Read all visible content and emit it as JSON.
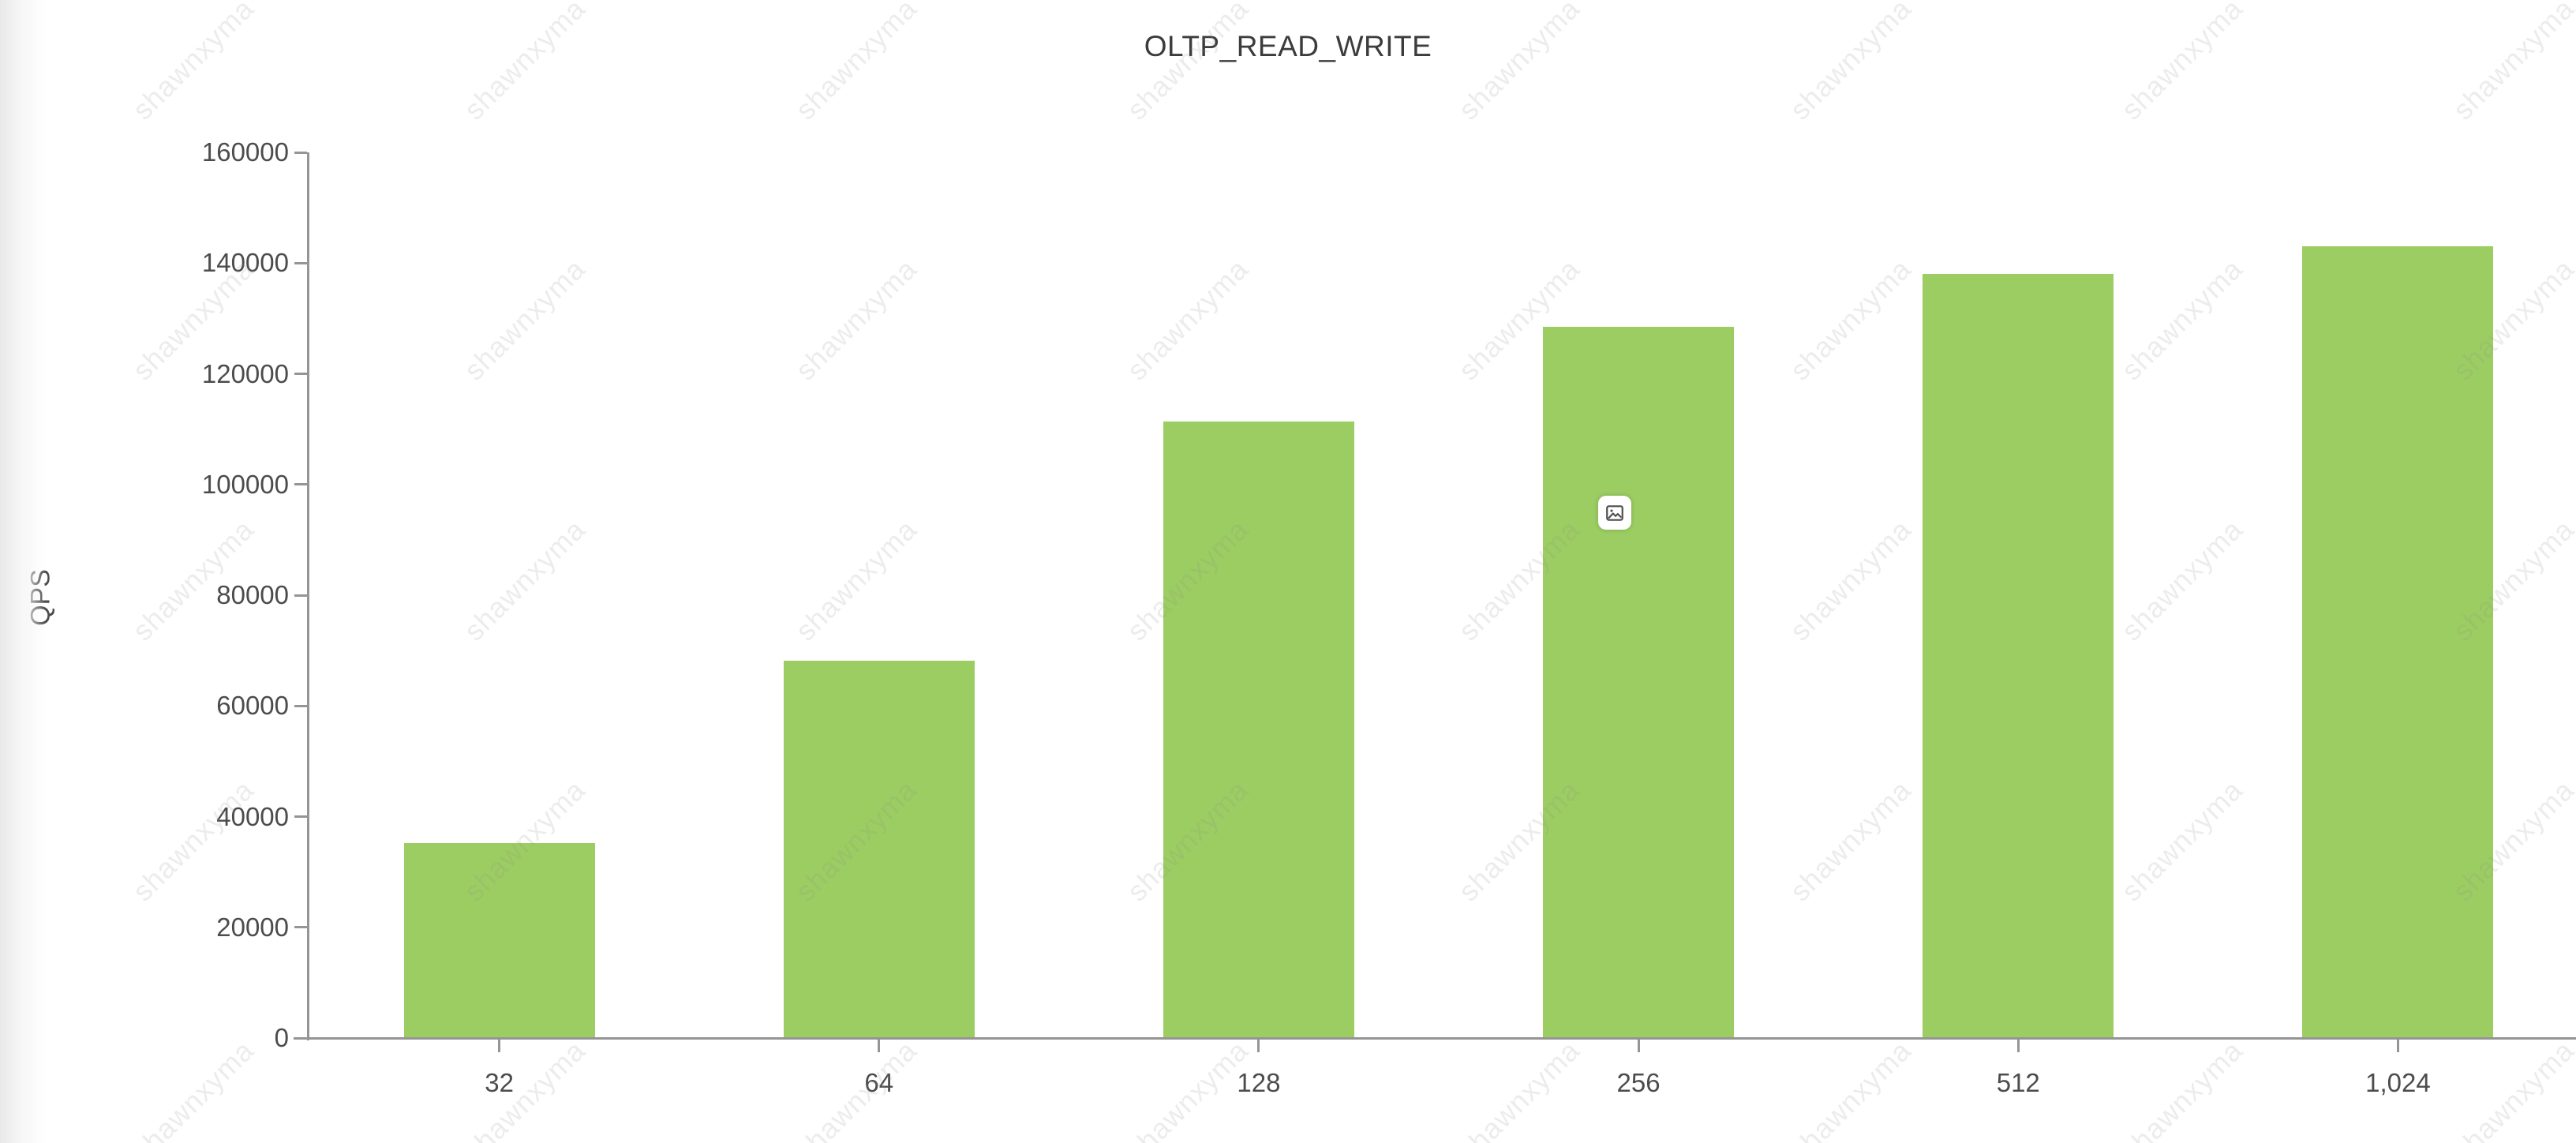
{
  "page": {
    "title": "OLTP_READ_WRITE"
  },
  "chart_data": {
    "type": "bar",
    "title": "OLTP_READ_WRITE",
    "categories": [
      "32",
      "64",
      "128",
      "256",
      "512",
      "1,024"
    ],
    "values": [
      35200,
      68200,
      111400,
      128500,
      138000,
      143000
    ],
    "xlabel": "",
    "ylabel": "QPS",
    "ylim": [
      0,
      160000
    ],
    "yticks": [
      0,
      20000,
      40000,
      60000,
      80000,
      100000,
      120000,
      140000,
      160000
    ],
    "grid": false,
    "legend": "none",
    "bar_color": "#9ccd62"
  },
  "watermark": {
    "text": "shawnxyma"
  },
  "icons": {
    "overlay": "image-placeholder-icon"
  },
  "colors": {
    "bar": "#9ccd62",
    "axis_line": "#959595",
    "axis_text": "#4c4c4c",
    "title_text": "#3c3c3c",
    "watermark_text": "rgba(140,140,140,0.17)"
  }
}
